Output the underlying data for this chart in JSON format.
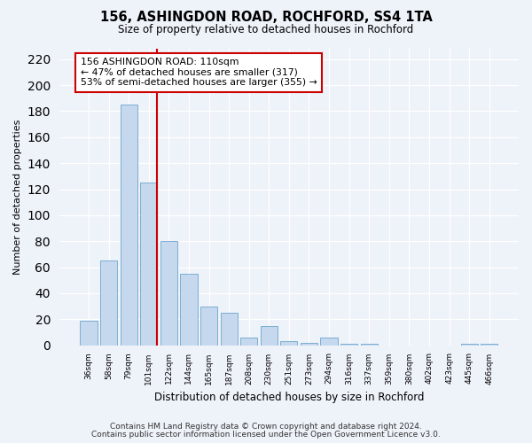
{
  "title": "156, ASHINGDON ROAD, ROCHFORD, SS4 1TA",
  "subtitle": "Size of property relative to detached houses in Rochford",
  "xlabel": "Distribution of detached houses by size in Rochford",
  "ylabel": "Number of detached properties",
  "categories": [
    "36sqm",
    "58sqm",
    "79sqm",
    "101sqm",
    "122sqm",
    "144sqm",
    "165sqm",
    "187sqm",
    "208sqm",
    "230sqm",
    "251sqm",
    "273sqm",
    "294sqm",
    "316sqm",
    "337sqm",
    "359sqm",
    "380sqm",
    "402sqm",
    "423sqm",
    "445sqm",
    "466sqm"
  ],
  "values": [
    19,
    65,
    185,
    125,
    80,
    55,
    30,
    25,
    6,
    15,
    3,
    2,
    6,
    1,
    1,
    0,
    0,
    0,
    0,
    1,
    1
  ],
  "bar_color": "#c5d8ee",
  "bar_edge_color": "#7bafd4",
  "annotation_title": "156 ASHINGDON ROAD: 110sqm",
  "annotation_line1": "← 47% of detached houses are smaller (317)",
  "annotation_line2": "53% of semi-detached houses are larger (355) →",
  "annotation_box_facecolor": "#ffffff",
  "annotation_box_edgecolor": "#cc0000",
  "property_line_color": "#cc0000",
  "footer_line1": "Contains HM Land Registry data © Crown copyright and database right 2024.",
  "footer_line2": "Contains public sector information licensed under the Open Government Licence v3.0.",
  "background_color": "#eef2f9",
  "ylim": [
    0,
    228
  ],
  "yticks": [
    0,
    20,
    40,
    60,
    80,
    100,
    120,
    140,
    160,
    180,
    200,
    220
  ]
}
